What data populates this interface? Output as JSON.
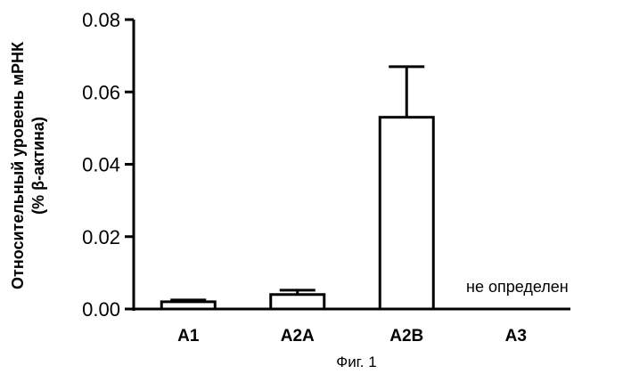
{
  "chart_data": {
    "type": "bar",
    "categories": [
      "A1",
      "A2A",
      "A2B",
      "A3"
    ],
    "values": [
      0.002,
      0.004,
      0.053,
      null
    ],
    "errors": [
      0.0005,
      0.0012,
      0.014,
      null
    ],
    "ylabel_line1": "Относительный уровень мРНК",
    "ylabel_line2": "(% β-актина)",
    "ylim": [
      0,
      0.08
    ],
    "yticks": [
      "0.00",
      "0.02",
      "0.04",
      "0.06",
      "0.08"
    ],
    "yticks_values": [
      0,
      0.02,
      0.04,
      0.06,
      0.08
    ],
    "annotation": "не определен",
    "grid": false,
    "bar_fill": "#ffffff",
    "line_color": "#000000"
  },
  "caption": "Фиг. 1"
}
